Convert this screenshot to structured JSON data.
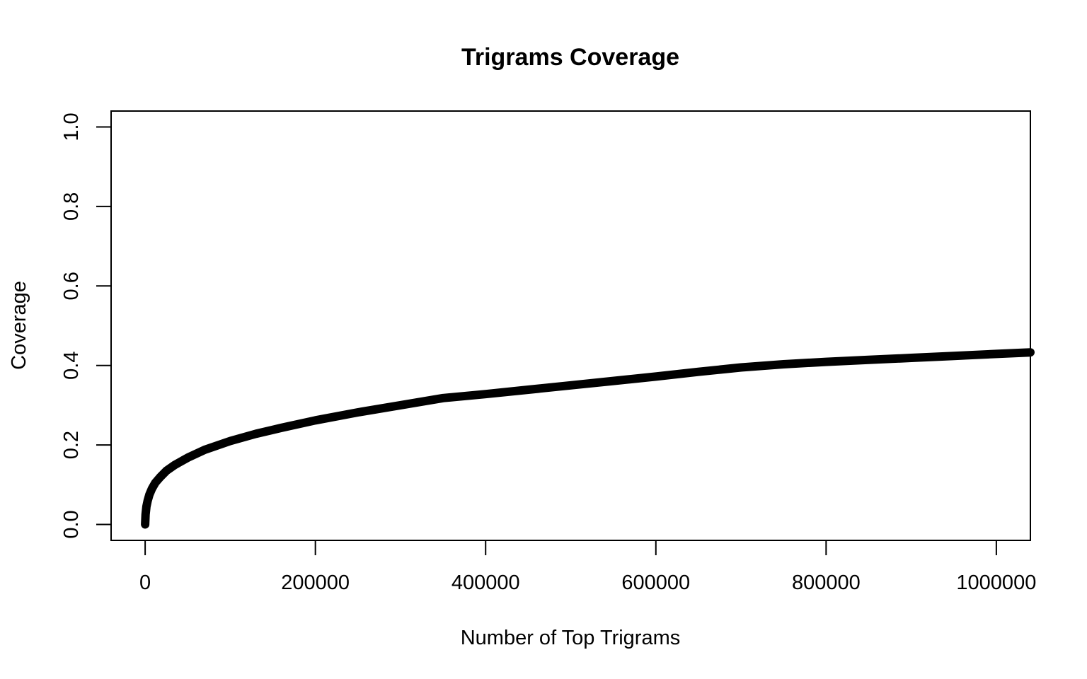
{
  "chart_data": {
    "type": "line",
    "title": "Trigrams Coverage",
    "xlabel": "Number of Top Trigrams",
    "ylabel": "Coverage",
    "xlim": [
      -40000,
      1040000
    ],
    "ylim": [
      -0.04,
      1.04
    ],
    "x_ticks": [
      0,
      200000,
      400000,
      600000,
      800000,
      1000000
    ],
    "x_tick_labels": [
      "0",
      "200000",
      "400000",
      "600000",
      "800000",
      "1000000"
    ],
    "y_ticks": [
      0.0,
      0.2,
      0.4,
      0.6,
      0.8,
      1.0
    ],
    "y_tick_labels": [
      "0.0",
      "0.2",
      "0.4",
      "0.6",
      "0.8",
      "1.0"
    ],
    "grid": false,
    "legend": "none",
    "series": [
      {
        "color": "#000000",
        "x": [
          0,
          500,
          1500,
          3000,
          5000,
          8000,
          12000,
          18000,
          25000,
          35000,
          50000,
          70000,
          100000,
          130000,
          160000,
          200000,
          250000,
          300000,
          350000,
          400000,
          450000,
          500000,
          550000,
          600000,
          650000,
          700000,
          750000,
          800000,
          850000,
          900000,
          950000,
          1000000,
          1040000
        ],
        "y": [
          0.0,
          0.025,
          0.045,
          0.06,
          0.075,
          0.09,
          0.105,
          0.12,
          0.135,
          0.15,
          0.168,
          0.188,
          0.21,
          0.228,
          0.243,
          0.262,
          0.282,
          0.3,
          0.318,
          0.328,
          0.339,
          0.35,
          0.361,
          0.372,
          0.384,
          0.395,
          0.403,
          0.409,
          0.414,
          0.419,
          0.424,
          0.429,
          0.433
        ]
      }
    ]
  }
}
